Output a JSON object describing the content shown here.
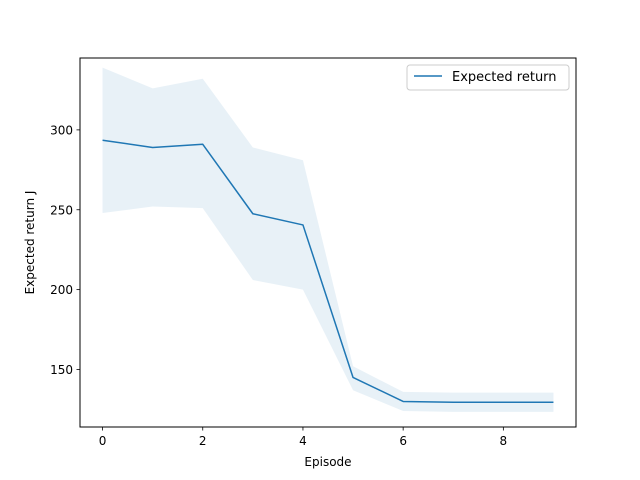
{
  "chart_data": {
    "type": "line",
    "title": "",
    "xlabel": "Episode",
    "ylabel": "Expected return J",
    "xlim": [
      -0.45,
      9.45
    ],
    "ylim": [
      114,
      345
    ],
    "x_ticks": [
      0,
      2,
      4,
      6,
      8
    ],
    "y_ticks": [
      150,
      200,
      250,
      300
    ],
    "x_tick_labels": [
      "0",
      "2",
      "4",
      "6",
      "8"
    ],
    "y_tick_labels": [
      "150",
      "200",
      "250",
      "300"
    ],
    "grid": false,
    "legend": {
      "position": "top-right",
      "entries": [
        "Expected return"
      ]
    },
    "series": [
      {
        "name": "Expected return",
        "color": "#1f77b4",
        "x": [
          0,
          1,
          2,
          3,
          4,
          5,
          6,
          7,
          8,
          9
        ],
        "values": [
          293.5,
          289,
          291,
          247.5,
          240.5,
          145,
          130,
          129.5,
          129.5,
          129.5
        ],
        "band_upper": [
          339,
          326,
          332,
          289,
          281,
          152,
          136,
          135.5,
          135.5,
          135.5
        ],
        "band_lower": [
          248,
          252,
          251,
          206,
          200,
          137,
          124,
          123.5,
          123.5,
          123.5
        ],
        "band_color": "#1f77b4",
        "band_opacity": 0.1
      }
    ]
  }
}
